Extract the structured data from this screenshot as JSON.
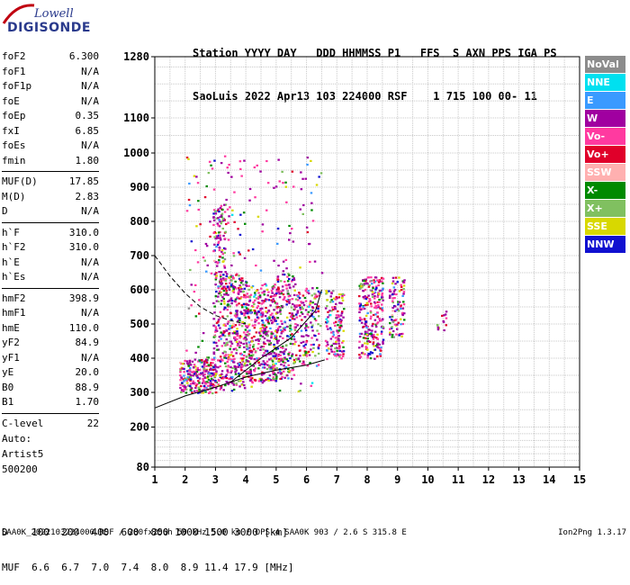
{
  "logo": {
    "line1": "Lowell",
    "line2": "DIGISONDE"
  },
  "header": {
    "line1": "Station YYYY DAY   DDD HHMMSS P1   FFS  S AXN PPS IGA PS",
    "line2": "SaoLuis 2022 Apr13 103 224000 RSF    1 715 100 00- 11"
  },
  "params": {
    "group1": [
      {
        "k": "foF2",
        "v": "6.300"
      },
      {
        "k": "foF1",
        "v": "N/A"
      },
      {
        "k": "foF1p",
        "v": "N/A"
      },
      {
        "k": "foE",
        "v": "N/A"
      },
      {
        "k": "foEp",
        "v": "0.35"
      },
      {
        "k": "fxI",
        "v": "6.85"
      },
      {
        "k": "foEs",
        "v": "N/A"
      },
      {
        "k": "fmin",
        "v": "1.80"
      }
    ],
    "group2": [
      {
        "k": "MUF(D)",
        "v": "17.85"
      },
      {
        "k": "M(D)",
        "v": "2.83"
      },
      {
        "k": "D",
        "v": "N/A"
      }
    ],
    "group3": [
      {
        "k": "h`F",
        "v": "310.0"
      },
      {
        "k": "h`F2",
        "v": "310.0"
      },
      {
        "k": "h`E",
        "v": "N/A"
      },
      {
        "k": "h`Es",
        "v": "N/A"
      }
    ],
    "group4": [
      {
        "k": "hmF2",
        "v": "398.9"
      },
      {
        "k": "hmF1",
        "v": "N/A"
      },
      {
        "k": "hmE",
        "v": "110.0"
      },
      {
        "k": "yF2",
        "v": "84.9"
      },
      {
        "k": "yF1",
        "v": "N/A"
      },
      {
        "k": "yE",
        "v": "20.0"
      },
      {
        "k": "B0",
        "v": "88.9"
      },
      {
        "k": "B1",
        "v": "1.70"
      }
    ],
    "group5": [
      {
        "k": "C-level",
        "v": "22"
      }
    ]
  },
  "auto": {
    "line1": "Auto:",
    "line2": "Artist5",
    "line3": "500200"
  },
  "legend": [
    {
      "label": "NoVal",
      "color": "#8c8c8c"
    },
    {
      "label": "NNE",
      "color": "#00e0f0"
    },
    {
      "label": "E",
      "color": "#3a9aff"
    },
    {
      "label": "W",
      "color": "#a000a0"
    },
    {
      "label": "Vo-",
      "color": "#ff3aa0"
    },
    {
      "label": "Vo+",
      "color": "#e0002a"
    },
    {
      "label": "SSW",
      "color": "#ffb0b0"
    },
    {
      "label": "X-",
      "color": "#008a00"
    },
    {
      "label": "X+",
      "color": "#80c060"
    },
    {
      "label": "SSE",
      "color": "#d8d800"
    },
    {
      "label": "NNW",
      "color": "#1010d0"
    }
  ],
  "dmuf": {
    "line1": "D    100  200  400  600  800 1000 1500 3000 [km]",
    "line2": "MUF  6.6  6.7  7.0  7.4  8.0  8.9 11.4 17.9 [MHz]"
  },
  "footer": {
    "left": "SAA0K_2022103224000.RSF / 280fx256h 50 kHz 5.0 km / DPS-4 SAA0K 903 / 2.6 S 315.8 E",
    "right": "Ion2Png 1.3.17"
  },
  "chart_data": {
    "type": "scatter",
    "xlim": [
      1,
      15
    ],
    "ylim": [
      80,
      1280
    ],
    "x_ticks": [
      1,
      2,
      3,
      4,
      5,
      6,
      7,
      8,
      9,
      10,
      11,
      12,
      13,
      14,
      15
    ],
    "y_ticks": [
      80,
      200,
      300,
      400,
      500,
      600,
      700,
      800,
      900,
      1000,
      1100,
      1280
    ],
    "grid": true,
    "clusters": [
      {
        "x": [
          1.8,
          3.0
        ],
        "y": [
          300,
          400
        ],
        "density": 2.0
      },
      {
        "x": [
          2.9,
          3.3
        ],
        "y": [
          300,
          850
        ],
        "density": 0.9
      },
      {
        "x": [
          3.3,
          4.0
        ],
        "y": [
          320,
          650
        ],
        "density": 1.2
      },
      {
        "x": [
          4.0,
          5.0
        ],
        "y": [
          330,
          620
        ],
        "density": 1.2
      },
      {
        "x": [
          5.0,
          5.6
        ],
        "y": [
          340,
          650
        ],
        "density": 1.0
      },
      {
        "x": [
          5.6,
          6.4
        ],
        "y": [
          380,
          610
        ],
        "density": 0.7
      },
      {
        "x": [
          6.6,
          7.2
        ],
        "y": [
          400,
          600
        ],
        "density": 1.1
      },
      {
        "x": [
          7.7,
          8.5
        ],
        "y": [
          400,
          640
        ],
        "density": 1.3
      },
      {
        "x": [
          8.7,
          9.2
        ],
        "y": [
          460,
          640
        ],
        "density": 1.0
      },
      {
        "x": [
          10.2,
          10.6
        ],
        "y": [
          460,
          540
        ],
        "density": 0.4
      },
      {
        "x": [
          2.0,
          6.5
        ],
        "y": [
          300,
          1000
        ],
        "density": 0.08
      }
    ],
    "point_colors": [
      "#a000a0",
      "#ff3aa0",
      "#e0002a",
      "#008a00",
      "#80c060",
      "#d8d800",
      "#1010d0",
      "#3a9aff",
      "#ffb0b0",
      "#00e0f0",
      "#8c8c8c"
    ],
    "curves": [
      {
        "name": "",
        "style": "solid",
        "x": [
          1.0,
          2.0,
          3.0,
          4.0,
          5.0,
          6.0,
          6.6
        ],
        "y": [
          255,
          290,
          315,
          345,
          365,
          380,
          395
        ]
      },
      {
        "name": "",
        "style": "solid",
        "x": [
          3.5,
          4.5,
          5.5,
          6.3,
          6.5
        ],
        "y": [
          330,
          400,
          460,
          540,
          600
        ]
      },
      {
        "name": "",
        "style": "dashed",
        "x": [
          1.0,
          1.5,
          2.0,
          2.5,
          3.0,
          3.5,
          4.0
        ],
        "y": [
          700,
          640,
          590,
          550,
          525,
          510,
          500
        ]
      }
    ]
  }
}
